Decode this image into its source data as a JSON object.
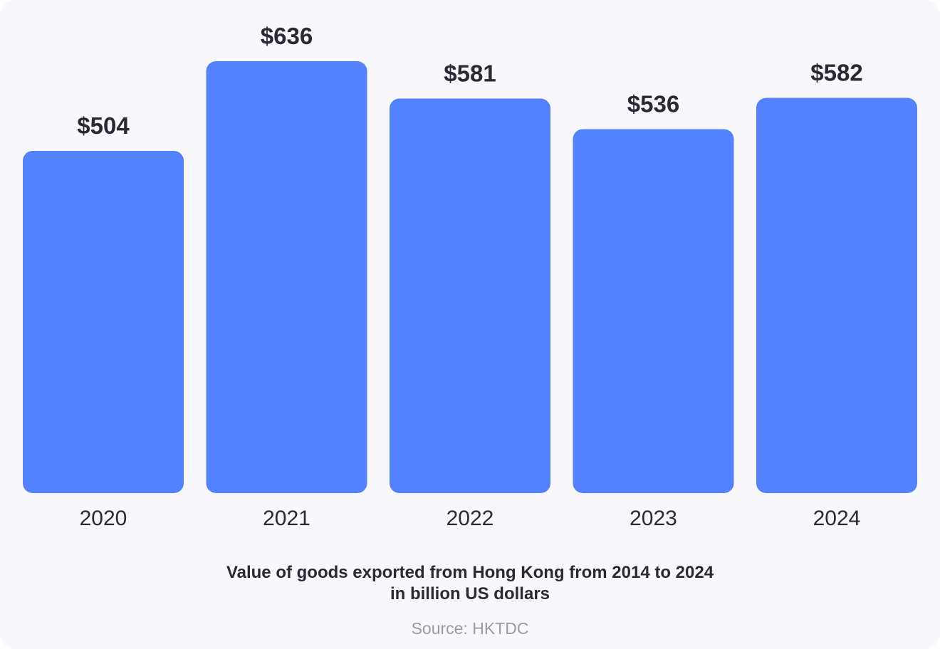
{
  "chart_data": {
    "type": "bar",
    "categories": [
      "2020",
      "2021",
      "2022",
      "2023",
      "2024"
    ],
    "values": [
      504,
      636,
      581,
      536,
      582
    ],
    "value_labels": [
      "$504",
      "$636",
      "$581",
      "$536",
      "$582"
    ],
    "title": "Value of goods exported from Hong Kong from 2014 to 2024",
    "subtitle": "in billion US dollars",
    "source": "Source: HKTDC",
    "xlabel": "",
    "ylabel": "",
    "ylim": [
      0,
      636
    ],
    "bar_color": "#5282ff",
    "grid": false,
    "legend": "none"
  }
}
